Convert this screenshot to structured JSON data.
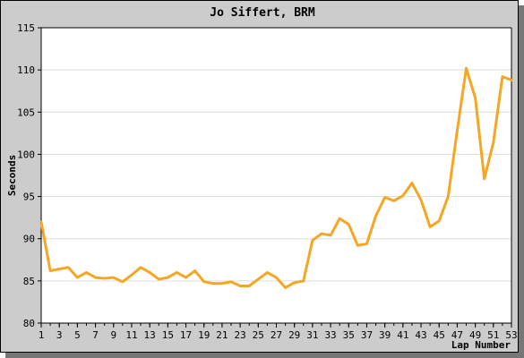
{
  "chart_data": {
    "type": "line",
    "title": "Jo Siffert, BRM",
    "xlabel": "Lap Number",
    "ylabel": "Seconds",
    "xlim": [
      1,
      53
    ],
    "ylim": [
      80,
      115
    ],
    "y_ticks": [
      80,
      85,
      90,
      95,
      100,
      105,
      110,
      115
    ],
    "x_ticks": [
      1,
      3,
      5,
      7,
      9,
      11,
      13,
      15,
      17,
      19,
      21,
      23,
      25,
      27,
      29,
      31,
      33,
      35,
      37,
      39,
      41,
      43,
      45,
      47,
      49,
      51,
      53
    ],
    "grid": true,
    "legend": "none",
    "line_color": "#f5a623",
    "series": [
      {
        "x": [
          1,
          2,
          3,
          4,
          5,
          6,
          7,
          8,
          9,
          10,
          11,
          12,
          13,
          14,
          15,
          16,
          17,
          18,
          19,
          20,
          21,
          22,
          23,
          24,
          25,
          26,
          27,
          28,
          29,
          30,
          31,
          32,
          33,
          34,
          35,
          36,
          37,
          38,
          39,
          40,
          41,
          42,
          43,
          44,
          45,
          46,
          47,
          48,
          49,
          50,
          51,
          52,
          53
        ],
        "values": [
          92.0,
          86.2,
          86.4,
          86.6,
          85.4,
          86.0,
          85.4,
          85.3,
          85.4,
          84.9,
          85.7,
          86.6,
          86.0,
          85.2,
          85.4,
          86.0,
          85.4,
          86.2,
          84.9,
          84.7,
          84.7,
          84.9,
          84.4,
          84.4,
          85.2,
          86.0,
          85.4,
          84.2,
          84.8,
          85.0,
          89.8,
          90.6,
          90.4,
          92.4,
          91.7,
          89.2,
          89.4,
          92.7,
          94.9,
          94.5,
          95.1,
          96.6,
          94.6,
          91.4,
          92.1,
          95.0,
          102.8,
          110.2,
          106.7,
          97.1,
          101.4,
          109.2,
          108.8
        ]
      }
    ]
  }
}
